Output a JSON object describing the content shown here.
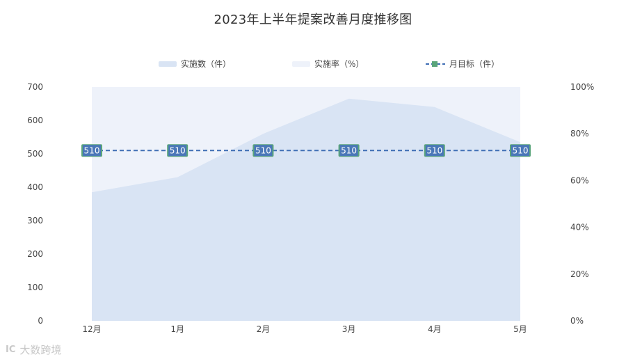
{
  "chart_data": {
    "type": "area",
    "title": "2023年上半年提案改善月度推移图",
    "categories": [
      "12月",
      "1月",
      "2月",
      "3月",
      "4月",
      "5月"
    ],
    "legend_position": "top-center",
    "series": [
      {
        "name": "实施数（件）",
        "type": "area",
        "axis": "left",
        "values": [
          385,
          430,
          560,
          665,
          640,
          535
        ],
        "color": "#d9e4f4"
      },
      {
        "name": "实施率（%）",
        "type": "area",
        "axis": "right",
        "values": [
          100,
          100,
          100,
          100,
          100,
          100
        ],
        "color": "#eef2fa"
      },
      {
        "name": "月目标（件）",
        "type": "line",
        "axis": "left",
        "values": [
          510,
          510,
          510,
          510,
          510,
          510
        ],
        "color": "#3f6eb4",
        "marker_color": "#5aa57a",
        "label_color": "#4a77b8"
      }
    ],
    "y_left": {
      "min": 0,
      "max": 700,
      "ticks": [
        "0",
        "100",
        "200",
        "300",
        "400",
        "500",
        "600",
        "700"
      ]
    },
    "y_right": {
      "min": 0,
      "max": 100,
      "ticks": [
        "0%",
        "20%",
        "40%",
        "60%",
        "80%",
        "100%"
      ]
    },
    "grid": false
  },
  "watermark": {
    "text": "大数跨境",
    "logo": "IC"
  }
}
